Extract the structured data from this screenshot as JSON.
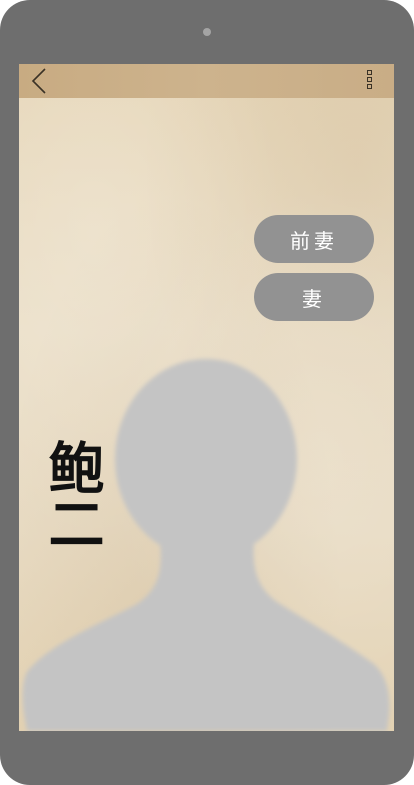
{
  "header": {
    "back_icon": "chevron-left-icon",
    "menu_icon": "three-squares-menu-icon"
  },
  "relations": [
    {
      "label": "前妻"
    },
    {
      "label": "妻"
    }
  ],
  "profile": {
    "name": "鲍二",
    "avatar_icon": "person-silhouette-icon"
  },
  "colors": {
    "device_frame": "#6e6e6e",
    "top_bar": "#c9ad86",
    "button_bg": "#929292",
    "avatar_fill": "#c4c4c4",
    "paper": "#e8dbc3"
  }
}
